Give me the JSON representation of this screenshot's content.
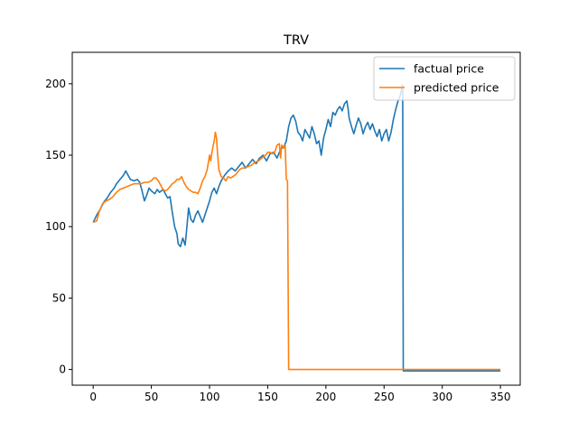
{
  "chart_data": {
    "type": "line",
    "title": "TRV",
    "xlabel": "",
    "ylabel": "",
    "xlim": [
      -18,
      367
    ],
    "ylim": [
      -11,
      222
    ],
    "xticks": [
      0,
      50,
      100,
      150,
      200,
      250,
      300,
      350
    ],
    "yticks": [
      0,
      50,
      100,
      150,
      200
    ],
    "grid": false,
    "legend_position": "top-right",
    "series": [
      {
        "name": "factual price",
        "color": "#1f77b4",
        "points": [
          [
            0,
            103
          ],
          [
            3,
            108
          ],
          [
            6,
            112
          ],
          [
            9,
            117
          ],
          [
            12,
            120
          ],
          [
            15,
            124
          ],
          [
            18,
            127
          ],
          [
            20,
            130
          ],
          [
            23,
            133
          ],
          [
            26,
            136
          ],
          [
            28,
            139
          ],
          [
            30,
            136
          ],
          [
            32,
            133
          ],
          [
            35,
            132
          ],
          [
            38,
            133
          ],
          [
            40,
            131
          ],
          [
            42,
            125
          ],
          [
            44,
            118
          ],
          [
            46,
            122
          ],
          [
            48,
            127
          ],
          [
            50,
            125
          ],
          [
            53,
            123
          ],
          [
            55,
            126
          ],
          [
            57,
            124
          ],
          [
            60,
            126
          ],
          [
            62,
            123
          ],
          [
            64,
            120
          ],
          [
            66,
            121
          ],
          [
            68,
            110
          ],
          [
            70,
            100
          ],
          [
            72,
            95
          ],
          [
            73,
            88
          ],
          [
            75,
            86
          ],
          [
            77,
            92
          ],
          [
            79,
            87
          ],
          [
            80,
            95
          ],
          [
            81,
            104
          ],
          [
            82,
            113
          ],
          [
            84,
            105
          ],
          [
            86,
            103
          ],
          [
            88,
            108
          ],
          [
            90,
            111
          ],
          [
            92,
            107
          ],
          [
            94,
            103
          ],
          [
            96,
            108
          ],
          [
            98,
            113
          ],
          [
            100,
            118
          ],
          [
            102,
            124
          ],
          [
            104,
            127
          ],
          [
            106,
            123
          ],
          [
            108,
            128
          ],
          [
            110,
            132
          ],
          [
            113,
            136
          ],
          [
            116,
            139
          ],
          [
            119,
            141
          ],
          [
            122,
            139
          ],
          [
            125,
            142
          ],
          [
            128,
            145
          ],
          [
            131,
            141
          ],
          [
            134,
            144
          ],
          [
            137,
            147
          ],
          [
            140,
            144
          ],
          [
            143,
            148
          ],
          [
            146,
            150
          ],
          [
            149,
            146
          ],
          [
            152,
            151
          ],
          [
            155,
            152
          ],
          [
            158,
            148
          ],
          [
            161,
            154
          ],
          [
            164,
            156
          ],
          [
            166,
            160
          ],
          [
            168,
            170
          ],
          [
            170,
            176
          ],
          [
            172,
            178
          ],
          [
            174,
            174
          ],
          [
            176,
            166
          ],
          [
            178,
            164
          ],
          [
            180,
            160
          ],
          [
            182,
            168
          ],
          [
            184,
            165
          ],
          [
            186,
            162
          ],
          [
            188,
            170
          ],
          [
            190,
            165
          ],
          [
            192,
            158
          ],
          [
            194,
            160
          ],
          [
            195,
            155
          ],
          [
            196,
            150
          ],
          [
            198,
            162
          ],
          [
            200,
            168
          ],
          [
            202,
            175
          ],
          [
            204,
            170
          ],
          [
            206,
            180
          ],
          [
            208,
            178
          ],
          [
            210,
            182
          ],
          [
            212,
            184
          ],
          [
            214,
            181
          ],
          [
            216,
            186
          ],
          [
            218,
            188
          ],
          [
            219,
            183
          ],
          [
            220,
            176
          ],
          [
            222,
            170
          ],
          [
            224,
            165
          ],
          [
            226,
            171
          ],
          [
            228,
            176
          ],
          [
            230,
            172
          ],
          [
            232,
            165
          ],
          [
            234,
            170
          ],
          [
            236,
            173
          ],
          [
            238,
            168
          ],
          [
            240,
            172
          ],
          [
            242,
            167
          ],
          [
            244,
            163
          ],
          [
            246,
            168
          ],
          [
            248,
            160
          ],
          [
            250,
            165
          ],
          [
            252,
            168
          ],
          [
            254,
            160
          ],
          [
            256,
            166
          ],
          [
            258,
            175
          ],
          [
            260,
            182
          ],
          [
            262,
            188
          ],
          [
            264,
            192
          ],
          [
            265,
            196
          ],
          [
            266,
            199
          ],
          [
            266.5,
            -1
          ],
          [
            280,
            -1
          ],
          [
            300,
            -1
          ],
          [
            320,
            -1
          ],
          [
            335,
            -1
          ],
          [
            350,
            -1
          ]
        ]
      },
      {
        "name": "predicted price",
        "color": "#ff7f0e",
        "points": [
          [
            0,
            103
          ],
          [
            3,
            104
          ],
          [
            5,
            110
          ],
          [
            8,
            116
          ],
          [
            11,
            118
          ],
          [
            14,
            119
          ],
          [
            17,
            121
          ],
          [
            20,
            124
          ],
          [
            23,
            126
          ],
          [
            26,
            127
          ],
          [
            29,
            128
          ],
          [
            32,
            129
          ],
          [
            35,
            130
          ],
          [
            38,
            130
          ],
          [
            41,
            130
          ],
          [
            44,
            131
          ],
          [
            47,
            131
          ],
          [
            50,
            132
          ],
          [
            52,
            134
          ],
          [
            54,
            134
          ],
          [
            56,
            132
          ],
          [
            58,
            129
          ],
          [
            60,
            126
          ],
          [
            62,
            125
          ],
          [
            64,
            126
          ],
          [
            66,
            128
          ],
          [
            68,
            130
          ],
          [
            70,
            131
          ],
          [
            72,
            133
          ],
          [
            74,
            133
          ],
          [
            76,
            135
          ],
          [
            78,
            131
          ],
          [
            80,
            128
          ],
          [
            82,
            126
          ],
          [
            84,
            125
          ],
          [
            86,
            124
          ],
          [
            88,
            124
          ],
          [
            90,
            123
          ],
          [
            92,
            127
          ],
          [
            94,
            132
          ],
          [
            96,
            135
          ],
          [
            98,
            140
          ],
          [
            99,
            145
          ],
          [
            100,
            150
          ],
          [
            101,
            146
          ],
          [
            102,
            152
          ],
          [
            103,
            156
          ],
          [
            104,
            160
          ],
          [
            105,
            166
          ],
          [
            106,
            162
          ],
          [
            107,
            150
          ],
          [
            108,
            140
          ],
          [
            110,
            135
          ],
          [
            112,
            134
          ],
          [
            114,
            132
          ],
          [
            116,
            135
          ],
          [
            118,
            134
          ],
          [
            120,
            135
          ],
          [
            122,
            136
          ],
          [
            124,
            138
          ],
          [
            126,
            140
          ],
          [
            128,
            141
          ],
          [
            130,
            141
          ],
          [
            133,
            142
          ],
          [
            136,
            143
          ],
          [
            139,
            145
          ],
          [
            142,
            146
          ],
          [
            145,
            148
          ],
          [
            148,
            150
          ],
          [
            150,
            152
          ],
          [
            152,
            152
          ],
          [
            154,
            151
          ],
          [
            156,
            152
          ],
          [
            158,
            157
          ],
          [
            160,
            158
          ],
          [
            161,
            148
          ],
          [
            162,
            157
          ],
          [
            163,
            156
          ],
          [
            164,
            155
          ],
          [
            165,
            157
          ],
          [
            166,
            133
          ],
          [
            167,
            132
          ],
          [
            168,
            0
          ],
          [
            180,
            0
          ],
          [
            200,
            0
          ],
          [
            250,
            0
          ],
          [
            300,
            0
          ],
          [
            350,
            0
          ]
        ]
      }
    ]
  }
}
